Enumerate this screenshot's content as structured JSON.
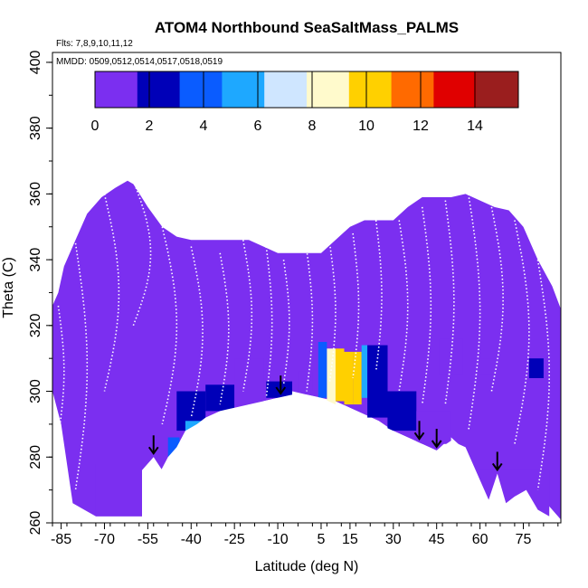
{
  "chart_data": {
    "type": "heatmap",
    "title": "ATOM4 Northbound SeaSaltMass_PALMS",
    "flights_label": "Flts: 7,8,9,10,11,12",
    "mmdd_label": "MMDD: 0509,0512,0514,0517,0518,0519",
    "xlabel": "Latitude (deg N)",
    "ylabel": "Theta (C)",
    "xlim": [
      -88,
      88
    ],
    "ylim": [
      260,
      403
    ],
    "x_ticks": [
      -85,
      -70,
      -55,
      -40,
      -25,
      -10,
      5,
      15,
      30,
      45,
      60,
      75
    ],
    "y_ticks": [
      260,
      280,
      300,
      320,
      340,
      360,
      380,
      400
    ],
    "colorbar": {
      "ticks": [
        0,
        2,
        4,
        6,
        8,
        10,
        12,
        14
      ],
      "range": [
        0,
        15.6
      ],
      "colors": [
        "#7b2ff0",
        "#0000b8",
        "#0a5cff",
        "#1ea8ff",
        "#cfe6ff",
        "#fffacc",
        "#ffd000",
        "#ff6a00",
        "#e00000",
        "#9a1e1e"
      ]
    },
    "background_level": 0,
    "arrow_latitudes": [
      -53,
      -9,
      39,
      45,
      66
    ],
    "coverage_outline": [
      [
        -88,
        326
      ],
      [
        -86,
        330
      ],
      [
        -84,
        338
      ],
      [
        -80,
        346
      ],
      [
        -76,
        354
      ],
      [
        -71,
        359
      ],
      [
        -66,
        362
      ],
      [
        -62,
        364
      ],
      [
        -60,
        363
      ],
      [
        -55,
        356
      ],
      [
        -50,
        350
      ],
      [
        -45,
        347
      ],
      [
        -40,
        346
      ],
      [
        -35,
        346
      ],
      [
        -30,
        346
      ],
      [
        -25,
        346
      ],
      [
        -20,
        346
      ],
      [
        -15,
        344
      ],
      [
        -10,
        342
      ],
      [
        -5,
        342
      ],
      [
        0,
        342
      ],
      [
        5,
        342
      ],
      [
        10,
        346
      ],
      [
        15,
        350
      ],
      [
        20,
        352
      ],
      [
        25,
        352
      ],
      [
        30,
        352
      ],
      [
        35,
        356
      ],
      [
        40,
        359
      ],
      [
        45,
        359
      ],
      [
        50,
        359
      ],
      [
        55,
        360
      ],
      [
        60,
        358
      ],
      [
        65,
        356
      ],
      [
        70,
        355
      ],
      [
        75,
        350
      ],
      [
        80,
        340
      ],
      [
        85,
        332
      ],
      [
        88,
        325
      ],
      [
        88,
        261
      ],
      [
        84,
        265
      ],
      [
        80,
        270
      ],
      [
        75,
        272
      ],
      [
        70,
        268
      ],
      [
        67,
        276
      ],
      [
        63,
        267
      ],
      [
        60,
        272
      ],
      [
        55,
        282
      ],
      [
        50,
        286
      ],
      [
        45,
        282
      ],
      [
        40,
        284
      ],
      [
        35,
        286
      ],
      [
        30,
        288
      ],
      [
        25,
        291
      ],
      [
        20,
        293
      ],
      [
        15,
        295
      ],
      [
        10,
        297
      ],
      [
        5,
        298
      ],
      [
        0,
        299
      ],
      [
        -5,
        300
      ],
      [
        -10,
        298
      ],
      [
        -15,
        297
      ],
      [
        -20,
        296
      ],
      [
        -25,
        294
      ],
      [
        -30,
        294
      ],
      [
        -35,
        291
      ],
      [
        -40,
        287
      ],
      [
        -45,
        283
      ],
      [
        -50,
        276
      ],
      [
        -53,
        280
      ],
      [
        -56,
        276
      ],
      [
        -57,
        262
      ],
      [
        -73,
        262
      ],
      [
        -77,
        264
      ],
      [
        -81,
        266
      ],
      [
        -85,
        290
      ],
      [
        -88,
        300
      ]
    ],
    "ground_profile": [
      [
        -57,
        276
      ],
      [
        -55,
        278
      ],
      [
        -53,
        280
      ],
      [
        -51,
        275
      ],
      [
        -48,
        280
      ],
      [
        -45,
        283
      ],
      [
        -42,
        288
      ],
      [
        -38,
        290
      ],
      [
        -35,
        292
      ],
      [
        -30,
        294
      ],
      [
        -25,
        295
      ],
      [
        -20,
        296
      ],
      [
        -15,
        297
      ],
      [
        -10,
        298
      ],
      [
        -5,
        299
      ],
      [
        0,
        299
      ],
      [
        5,
        298
      ],
      [
        10,
        296
      ],
      [
        15,
        294
      ],
      [
        20,
        292
      ],
      [
        25,
        290
      ],
      [
        30,
        288
      ],
      [
        35,
        286
      ],
      [
        40,
        284
      ],
      [
        45,
        282
      ],
      [
        50,
        285
      ],
      [
        55,
        283
      ],
      [
        60,
        273
      ],
      [
        63,
        267
      ],
      [
        66,
        275
      ],
      [
        69,
        266
      ],
      [
        72,
        268
      ],
      [
        76,
        270
      ],
      [
        80,
        264
      ],
      [
        84,
        262
      ],
      [
        88,
        260
      ]
    ],
    "patches": [
      {
        "lat": [
          -73,
          -57
        ],
        "theta": [
          262,
          278
        ],
        "value": 1.2
      },
      {
        "lat": [
          -48,
          -44
        ],
        "theta": [
          276,
          286
        ],
        "value": 3.5
      },
      {
        "lat": [
          -45,
          -35
        ],
        "theta": [
          288,
          300
        ],
        "value": 2.0
      },
      {
        "lat": [
          -42,
          -36
        ],
        "theta": [
          286,
          291
        ],
        "value": 4.8
      },
      {
        "lat": [
          -35,
          -25
        ],
        "theta": [
          294,
          302
        ],
        "value": 1.6
      },
      {
        "lat": [
          -25,
          -15
        ],
        "theta": [
          296,
          310
        ],
        "value": 1.0
      },
      {
        "lat": [
          -14,
          -5
        ],
        "theta": [
          298,
          303
        ],
        "value": 2.2
      },
      {
        "lat": [
          -3,
          2
        ],
        "theta": [
          300,
          306
        ],
        "value": 1.4
      },
      {
        "lat": [
          4,
          7
        ],
        "theta": [
          298,
          315
        ],
        "value": 3.6
      },
      {
        "lat": [
          7,
          10
        ],
        "theta": [
          296,
          313
        ],
        "value": 8.8
      },
      {
        "lat": [
          10,
          13
        ],
        "theta": [
          297,
          313
        ],
        "value": 9.8
      },
      {
        "lat": [
          13,
          16
        ],
        "theta": [
          296,
          312
        ],
        "value": 10.3
      },
      {
        "lat": [
          16,
          19
        ],
        "theta": [
          296,
          312
        ],
        "value": 9.4
      },
      {
        "lat": [
          19,
          21
        ],
        "theta": [
          298,
          314
        ],
        "value": 5.5
      },
      {
        "lat": [
          21,
          28
        ],
        "theta": [
          292,
          314
        ],
        "value": 1.6
      },
      {
        "lat": [
          28,
          38
        ],
        "theta": [
          288,
          300
        ],
        "value": 1.8
      },
      {
        "lat": [
          38,
          50
        ],
        "theta": [
          284,
          294
        ],
        "value": 1.4
      },
      {
        "lat": [
          46,
          54
        ],
        "theta": [
          305,
          316
        ],
        "value": 1.2
      },
      {
        "lat": [
          57,
          65
        ],
        "theta": [
          305,
          310
        ],
        "value": 1.0
      },
      {
        "lat": [
          77,
          82
        ],
        "theta": [
          304,
          310
        ],
        "value": 1.8
      },
      {
        "lat": [
          60,
          84
        ],
        "theta": [
          262,
          276
        ],
        "value": 1.0
      }
    ],
    "profiles": [
      {
        "lat": -86,
        "top": 326,
        "bot": 286,
        "drift": 2
      },
      {
        "lat": -80,
        "top": 345,
        "bot": 270,
        "drift": 4
      },
      {
        "lat": -70,
        "top": 360,
        "bot": 300,
        "drift": 5
      },
      {
        "lat": -60,
        "top": 364,
        "bot": 320,
        "drift": 6
      },
      {
        "lat": -50,
        "top": 350,
        "bot": 290,
        "drift": 5
      },
      {
        "lat": -40,
        "top": 344,
        "bot": 292,
        "drift": 4
      },
      {
        "lat": -30,
        "top": 342,
        "bot": 296,
        "drift": 3
      },
      {
        "lat": -22,
        "top": 346,
        "bot": 300,
        "drift": 3
      },
      {
        "lat": -14,
        "top": 344,
        "bot": 298,
        "drift": 2
      },
      {
        "lat": -8,
        "top": 340,
        "bot": 302,
        "drift": 2
      },
      {
        "lat": 0,
        "top": 343,
        "bot": 300,
        "drift": 2
      },
      {
        "lat": 8,
        "top": 345,
        "bot": 303,
        "drift": 2
      },
      {
        "lat": 16,
        "top": 348,
        "bot": 304,
        "drift": 2
      },
      {
        "lat": 24,
        "top": 352,
        "bot": 306,
        "drift": 2
      },
      {
        "lat": 32,
        "top": 352,
        "bot": 300,
        "drift": 3
      },
      {
        "lat": 40,
        "top": 356,
        "bot": 296,
        "drift": 3
      },
      {
        "lat": 48,
        "top": 358,
        "bot": 296,
        "drift": 3
      },
      {
        "lat": 56,
        "top": 360,
        "bot": 288,
        "drift": 4
      },
      {
        "lat": 64,
        "top": 356,
        "bot": 300,
        "drift": 4
      },
      {
        "lat": 72,
        "top": 352,
        "bot": 284,
        "drift": 5
      },
      {
        "lat": 80,
        "top": 340,
        "bot": 270,
        "drift": 4
      }
    ]
  }
}
